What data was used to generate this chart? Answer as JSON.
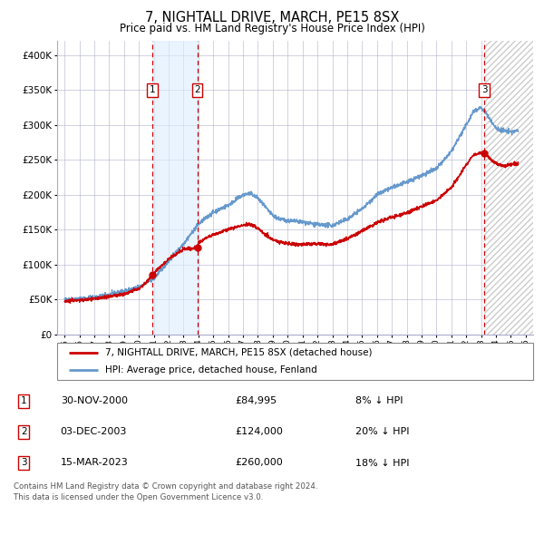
{
  "title": "7, NIGHTALL DRIVE, MARCH, PE15 8SX",
  "subtitle": "Price paid vs. HM Land Registry's House Price Index (HPI)",
  "legend_label_red": "7, NIGHTALL DRIVE, MARCH, PE15 8SX (detached house)",
  "legend_label_blue": "HPI: Average price, detached house, Fenland",
  "footnote1": "Contains HM Land Registry data © Crown copyright and database right 2024.",
  "footnote2": "This data is licensed under the Open Government Licence v3.0.",
  "transactions": [
    {
      "label": "1",
      "date": "30-NOV-2000",
      "price": 84995,
      "price_str": "£84,995",
      "pct": "8%",
      "direction": "↓",
      "x_year": 2000.92
    },
    {
      "label": "2",
      "date": "03-DEC-2003",
      "price": 124000,
      "price_str": "£124,000",
      "pct": "20%",
      "direction": "↓",
      "x_year": 2003.92
    },
    {
      "label": "3",
      "date": "15-MAR-2023",
      "price": 260000,
      "price_str": "£260,000",
      "pct": "18%",
      "direction": "↓",
      "x_year": 2023.21
    }
  ],
  "color_red": "#cc0000",
  "color_blue": "#6699cc",
  "color_vline": "#cc0000",
  "color_shade": "#ddeeff",
  "xlim": [
    1994.5,
    2026.5
  ],
  "ylim": [
    0,
    420000
  ],
  "yticks": [
    0,
    50000,
    100000,
    150000,
    200000,
    250000,
    300000,
    350000,
    400000
  ],
  "ytick_labels": [
    "£0",
    "£50K",
    "£100K",
    "£150K",
    "£200K",
    "£250K",
    "£300K",
    "£350K",
    "£400K"
  ],
  "xtick_years": [
    1995,
    1996,
    1997,
    1998,
    1999,
    2000,
    2001,
    2002,
    2003,
    2004,
    2005,
    2006,
    2007,
    2008,
    2009,
    2010,
    2011,
    2012,
    2013,
    2014,
    2015,
    2016,
    2017,
    2018,
    2019,
    2020,
    2021,
    2022,
    2023,
    2024,
    2025,
    2026
  ]
}
